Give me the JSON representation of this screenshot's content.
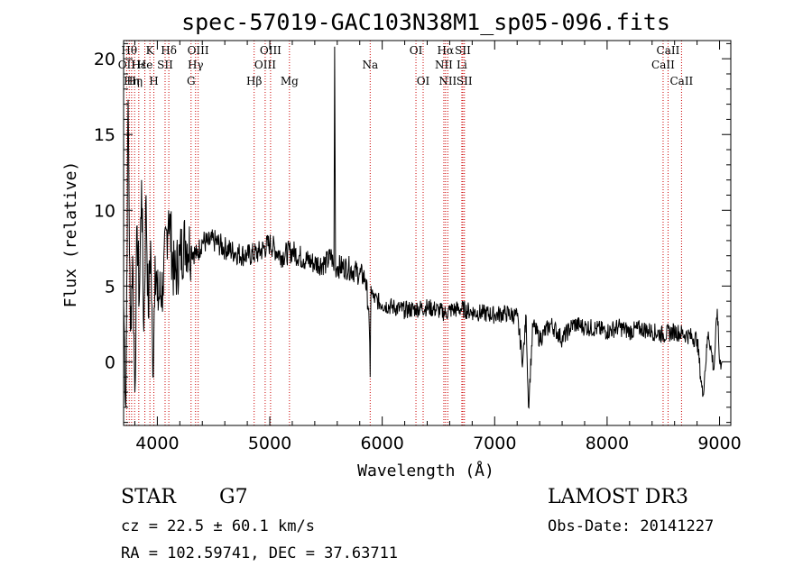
{
  "chart_data": {
    "type": "line",
    "title": "spec-57019-GAC103N38M1_sp05-096.fits",
    "xlabel": "Wavelength (Å)",
    "ylabel": "Flux (relative)",
    "xlim": [
      3700,
      9100
    ],
    "ylim": [
      -4.2,
      21.2
    ],
    "xticks": [
      4000,
      5000,
      6000,
      7000,
      8000,
      9000
    ],
    "yticks": [
      0,
      5,
      10,
      15,
      20
    ],
    "series": [
      {
        "name": "flux",
        "x": [
          3700,
          3720,
          3740,
          3760,
          3780,
          3800,
          3820,
          3840,
          3860,
          3880,
          3900,
          3920,
          3940,
          3960,
          3980,
          4000,
          4050,
          4100,
          4150,
          4200,
          4250,
          4300,
          4350,
          4400,
          4450,
          4500,
          4600,
          4700,
          4800,
          4900,
          5000,
          5100,
          5200,
          5300,
          5400,
          5500,
          5550,
          5570,
          5577,
          5585,
          5600,
          5700,
          5800,
          5850,
          5880,
          5893,
          5900,
          5920,
          6000,
          6100,
          6200,
          6300,
          6400,
          6500,
          6563,
          6600,
          6700,
          6800,
          6900,
          7000,
          7100,
          7200,
          7250,
          7280,
          7300,
          7340,
          7400,
          7500,
          7600,
          7700,
          7800,
          7900,
          8000,
          8100,
          8200,
          8300,
          8400,
          8500,
          8600,
          8700,
          8800,
          8850,
          8900,
          8950,
          8980,
          9000,
          9020
        ],
        "y": [
          4,
          -3,
          17.3,
          2,
          7,
          -2,
          9,
          4,
          12,
          2,
          11,
          3,
          8,
          -1,
          7,
          4,
          5,
          10,
          5.5,
          7,
          8,
          7.5,
          7,
          8,
          7.8,
          8,
          7.5,
          7.2,
          7,
          7.2,
          7.8,
          7,
          7.3,
          6.8,
          6.5,
          6.5,
          7,
          6,
          20.8,
          6.2,
          6.3,
          6.2,
          5.8,
          5.5,
          3.5,
          -1,
          5,
          4.2,
          3.8,
          3.6,
          3.4,
          3.5,
          3.6,
          3.4,
          3.2,
          3.4,
          3.5,
          3.3,
          3.2,
          3.1,
          3.2,
          3.0,
          0,
          3.0,
          -3,
          2.5,
          1.5,
          2.5,
          1.5,
          2.5,
          2.3,
          2.2,
          2.0,
          2.3,
          2.0,
          2.2,
          2.0,
          1.8,
          2.0,
          1.8,
          1.5,
          -2.3,
          2.0,
          -0.5,
          3.5,
          0,
          0
        ]
      }
    ],
    "lines": [
      {
        "wl": 3727,
        "label": "OII",
        "row": 1
      },
      {
        "wl": 3750,
        "label": "Hθ",
        "row": 0
      },
      {
        "wl": 3771,
        "label": "Hη",
        "row": 2
      },
      {
        "wl": 3798,
        "label": "Hη",
        "row": 2
      },
      {
        "wl": 3835,
        "label": "Hε",
        "row": 1
      },
      {
        "wl": 3889,
        "label": "He",
        "row": 1
      },
      {
        "wl": 3934,
        "label": "K",
        "row": 0
      },
      {
        "wl": 3969,
        "label": "H",
        "row": 2
      },
      {
        "wl": 4069,
        "label": "SII",
        "row": 1
      },
      {
        "wl": 4102,
        "label": "Hδ",
        "row": 0
      },
      {
        "wl": 4300,
        "label": "G",
        "row": 2
      },
      {
        "wl": 4340,
        "label": "Hγ",
        "row": 1
      },
      {
        "wl": 4363,
        "label": "OIII",
        "row": 0
      },
      {
        "wl": 4861,
        "label": "Hβ",
        "row": 2
      },
      {
        "wl": 4959,
        "label": "OIII",
        "row": 1
      },
      {
        "wl": 5007,
        "label": "OIII",
        "row": 0
      },
      {
        "wl": 5175,
        "label": "Mg",
        "row": 2
      },
      {
        "wl": 5893,
        "label": "Na",
        "row": 1
      },
      {
        "wl": 6300,
        "label": "OI",
        "row": 0
      },
      {
        "wl": 6364,
        "label": "OI",
        "row": 2
      },
      {
        "wl": 6548,
        "label": "NII",
        "row": 1
      },
      {
        "wl": 6563,
        "label": "Hα",
        "row": 0
      },
      {
        "wl": 6583,
        "label": "NII",
        "row": 2
      },
      {
        "wl": 6708,
        "label": "Li",
        "row": 1
      },
      {
        "wl": 6717,
        "label": "SII",
        "row": 0
      },
      {
        "wl": 6731,
        "label": "SII",
        "row": 2
      },
      {
        "wl": 8498,
        "label": "CaII",
        "row": 1
      },
      {
        "wl": 8542,
        "label": "CaII",
        "row": 0
      },
      {
        "wl": 8662,
        "label": "CaII",
        "row": 2
      }
    ]
  },
  "info": {
    "object_type": "STAR",
    "subclass": "G7",
    "survey": "LAMOST DR3",
    "cz": "cz = 22.5 ± 60.1 km/s",
    "obs_date": "Obs-Date: 20141227",
    "coords": "RA = 102.59741, DEC =  37.63711"
  },
  "colors": {
    "axis": "#000000",
    "spectrum": "#000000",
    "line_marker": "#cc0000"
  }
}
